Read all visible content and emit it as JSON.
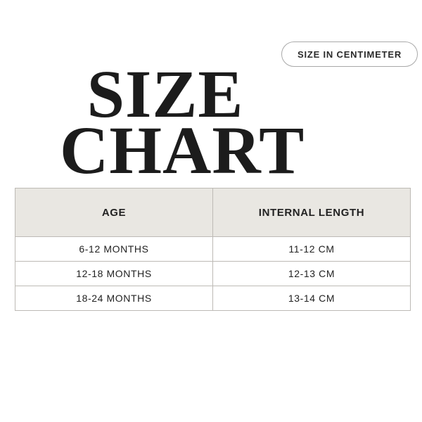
{
  "page": {
    "background": "#ffffff"
  },
  "title": {
    "line1": "SIZE",
    "line2": "CHART",
    "color": "#1c1c1c"
  },
  "badge": {
    "label": "SIZE IN CENTIMETER",
    "border_color": "#a9a9a9",
    "text_color": "#2b2b2b"
  },
  "table": {
    "header_bg": "#e9e7e2",
    "border_color": "#bdbab5",
    "columns": [
      "AGE",
      "INTERNAL LENGTH"
    ],
    "rows": [
      [
        "6-12 MONTHS",
        "11-12 CM"
      ],
      [
        "12-18 MONTHS",
        "12-13 CM"
      ],
      [
        "18-24 MONTHS",
        "13-14 CM"
      ]
    ]
  }
}
